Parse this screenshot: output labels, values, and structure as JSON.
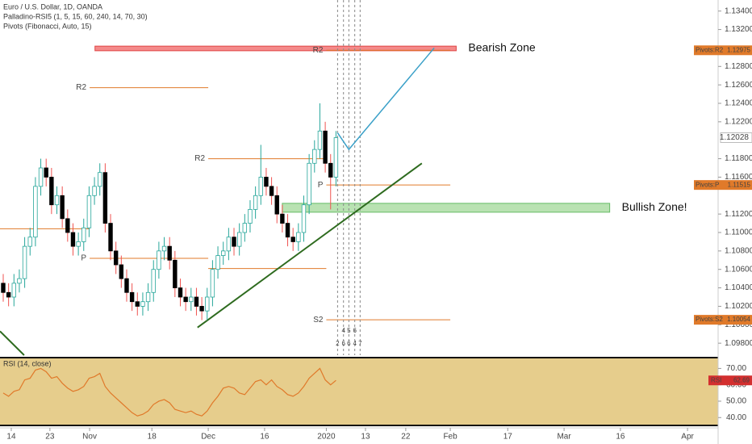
{
  "chart_data": [
    {
      "type": "candlestick",
      "title": "Euro / U.S. Dollar, 1D, OANDA",
      "indicators": [
        "Palladino-RSI5 (1, 5, 15, 60, 240, 14, 70, 30)",
        "Pivots (Fibonacci, Auto, 15)"
      ],
      "x": [
        0,
        1,
        2,
        3,
        4,
        5,
        6,
        7,
        8,
        9,
        10,
        11,
        12,
        13,
        14,
        15,
        16,
        17,
        18,
        19,
        20,
        21,
        22,
        23,
        24,
        25,
        26,
        27,
        28,
        29,
        30,
        31,
        32,
        33,
        34,
        35,
        36,
        37,
        38,
        39,
        40,
        41,
        42,
        43,
        44,
        45,
        46,
        47,
        48,
        49,
        50,
        51,
        52,
        53,
        54,
        55,
        56,
        57,
        58,
        59,
        60,
        61,
        62
      ],
      "open": [
        1.1045,
        1.1035,
        1.103,
        1.1045,
        1.105,
        1.1085,
        1.1095,
        1.115,
        1.117,
        1.116,
        1.113,
        1.114,
        1.1115,
        1.11,
        1.1085,
        1.109,
        1.1105,
        1.114,
        1.115,
        1.1165,
        1.111,
        1.108,
        1.1065,
        1.105,
        1.1035,
        1.1025,
        1.102,
        1.1025,
        1.1035,
        1.106,
        1.108,
        1.1085,
        1.107,
        1.104,
        1.103,
        1.1025,
        1.103,
        1.102,
        1.1015,
        1.103,
        1.106,
        1.1075,
        1.108,
        1.1095,
        1.1085,
        1.11,
        1.111,
        1.1125,
        1.114,
        1.116,
        1.115,
        1.114,
        1.112,
        1.111,
        1.1095,
        1.109,
        1.11,
        1.113,
        1.1175,
        1.119,
        1.121,
        1.1175,
        1.116
      ],
      "high": [
        1.1055,
        1.1045,
        1.1055,
        1.106,
        1.1095,
        1.1105,
        1.116,
        1.118,
        1.118,
        1.117,
        1.115,
        1.115,
        1.1125,
        1.111,
        1.11,
        1.1115,
        1.115,
        1.116,
        1.1175,
        1.1175,
        1.112,
        1.109,
        1.1075,
        1.106,
        1.1045,
        1.1035,
        1.1035,
        1.1045,
        1.107,
        1.109,
        1.1095,
        1.1095,
        1.108,
        1.105,
        1.104,
        1.104,
        1.104,
        1.103,
        1.104,
        1.107,
        1.1085,
        1.109,
        1.1105,
        1.1105,
        1.111,
        1.112,
        1.1135,
        1.115,
        1.1195,
        1.117,
        1.116,
        1.115,
        1.113,
        1.112,
        1.1105,
        1.111,
        1.114,
        1.1185,
        1.12,
        1.124,
        1.122,
        1.1185,
        1.121
      ],
      "low": [
        1.1025,
        1.102,
        1.102,
        1.1035,
        1.104,
        1.1075,
        1.1085,
        1.114,
        1.115,
        1.112,
        1.112,
        1.1105,
        1.109,
        1.1075,
        1.1075,
        1.108,
        1.1095,
        1.113,
        1.114,
        1.11,
        1.107,
        1.1055,
        1.104,
        1.1025,
        1.1015,
        1.101,
        1.101,
        1.1015,
        1.1025,
        1.105,
        1.107,
        1.106,
        1.103,
        1.102,
        1.1015,
        1.1015,
        1.101,
        1.1005,
        1.1005,
        1.102,
        1.105,
        1.1065,
        1.107,
        1.1075,
        1.1075,
        1.109,
        1.11,
        1.1115,
        1.113,
        1.114,
        1.113,
        1.111,
        1.11,
        1.1085,
        1.108,
        1.108,
        1.109,
        1.112,
        1.1165,
        1.118,
        1.1165,
        1.1125,
        1.115
      ],
      "close": [
        1.1035,
        1.103,
        1.1045,
        1.105,
        1.1085,
        1.1095,
        1.115,
        1.117,
        1.116,
        1.113,
        1.114,
        1.1115,
        1.11,
        1.1085,
        1.109,
        1.1105,
        1.114,
        1.115,
        1.1165,
        1.111,
        1.108,
        1.1065,
        1.105,
        1.1035,
        1.1025,
        1.102,
        1.1025,
        1.1035,
        1.106,
        1.108,
        1.1085,
        1.107,
        1.104,
        1.103,
        1.1025,
        1.103,
        1.102,
        1.1015,
        1.103,
        1.106,
        1.1075,
        1.108,
        1.1095,
        1.1085,
        1.11,
        1.111,
        1.1125,
        1.114,
        1.116,
        1.115,
        1.114,
        1.112,
        1.111,
        1.1095,
        1.109,
        1.11,
        1.113,
        1.1175,
        1.119,
        1.121,
        1.1175,
        1.116,
        1.12028
      ],
      "up_color": "#26a69a",
      "down_color": "#000000",
      "down_wick_color": "#ef5350",
      "xlim": [
        -0.6,
        133.2
      ],
      "ylim": [
        1.0967,
        1.1352
      ],
      "yticks": [
        {
          "value": 1.134,
          "label": "1.13400"
        },
        {
          "value": 1.132,
          "label": "1.13200"
        },
        {
          "value": 1.128,
          "label": "1.12800"
        },
        {
          "value": 1.126,
          "label": "1.12600"
        },
        {
          "value": 1.124,
          "label": "1.12400"
        },
        {
          "value": 1.122,
          "label": "1.12200"
        },
        {
          "value": 1.118,
          "label": "1.11800"
        },
        {
          "value": 1.116,
          "label": "1.11600"
        },
        {
          "value": 1.112,
          "label": "1.11200"
        },
        {
          "value": 1.11,
          "label": "1.11000"
        },
        {
          "value": 1.108,
          "label": "1.10800"
        },
        {
          "value": 1.106,
          "label": "1.10600"
        },
        {
          "value": 1.104,
          "label": "1.10400"
        },
        {
          "value": 1.102,
          "label": "1.10200"
        },
        {
          "value": 1.1,
          "label": "1.10000"
        },
        {
          "value": 1.098,
          "label": "1.09800"
        }
      ],
      "xticks": [
        {
          "value": 1.5,
          "label": "14"
        },
        {
          "value": 8.7,
          "label": "23"
        },
        {
          "value": 16.1,
          "label": "Nov"
        },
        {
          "value": 27.7,
          "label": "18"
        },
        {
          "value": 38.2,
          "label": "Dec"
        },
        {
          "value": 48.7,
          "label": "16"
        },
        {
          "value": 60.2,
          "label": "2020"
        },
        {
          "value": 67.5,
          "label": "13"
        },
        {
          "value": 75.0,
          "label": "22"
        },
        {
          "value": 83.3,
          "label": "Feb"
        },
        {
          "value": 94.0,
          "label": "17"
        },
        {
          "value": 104.5,
          "label": "Mar"
        },
        {
          "value": 115.0,
          "label": "16"
        },
        {
          "value": 127.5,
          "label": "Apr"
        }
      ],
      "pivot_color": "#e07a2a",
      "pivots": [
        {
          "value": 1.1104,
          "start": -0.6,
          "end": 16.1
        },
        {
          "label": "R2",
          "value": 1.1257,
          "start": 16.1,
          "end": 38.2
        },
        {
          "label": "P",
          "value": 1.1072,
          "start": 16.1,
          "end": 38.2
        },
        {
          "label": "R2",
          "value": 1.118,
          "start": 38.2,
          "end": 60.2
        },
        {
          "value": 1.1061,
          "start": 38.2,
          "end": 60.2
        },
        {
          "label": "R2",
          "value": 1.12975,
          "start": 60.2,
          "end": 83.3,
          "axis_label": "Pivots:R2"
        },
        {
          "label": "P",
          "value": 1.11515,
          "start": 60.2,
          "end": 83.3,
          "axis_label": "Pivots:P"
        },
        {
          "label": "S2",
          "value": 1.10054,
          "start": 60.2,
          "end": 83.3,
          "axis_label": "Pivots:S2"
        }
      ],
      "zones": [
        {
          "label": "Bearish Zone",
          "top": 1.1302,
          "bottom": 1.1297,
          "start": 17.1,
          "end": 84.4,
          "color": "#f48a8a",
          "border": "#e04545"
        },
        {
          "label": "Bullish Zone!",
          "top": 1.11316,
          "bottom": 1.1122,
          "start": 52,
          "end": 113,
          "color": "#b9e2b2",
          "border": "#66bb66"
        }
      ],
      "trendlines": [
        {
          "x": [
            36.2,
            78
          ],
          "y": [
            1.0997,
            1.1175
          ],
          "color": "#2e6b1f"
        },
        {
          "x": [
            -0.6,
            3.9
          ],
          "y": [
            1.0993,
            1.0967
          ],
          "color": "#2e6b1f"
        }
      ],
      "projection": {
        "x": [
          62.3,
          64.4,
          80.3
        ],
        "y": [
          1.1208,
          1.119,
          1.13
        ],
        "color": "#3aa0c8"
      },
      "events": {
        "x": [
          62.3,
          63.4,
          64.4,
          65.5,
          66.5
        ],
        "top_labels": [
          null,
          "4",
          "5",
          "6",
          null
        ],
        "bottom_labels": [
          "2",
          "6",
          "6",
          "4",
          "7"
        ]
      }
    },
    {
      "type": "line",
      "title": "RSI (14, close)",
      "badge": "RSI",
      "color": "#e0792a",
      "values": [
        55,
        53,
        56,
        57,
        63,
        64,
        69,
        70,
        68,
        64,
        65,
        61,
        58,
        56,
        57,
        59,
        64,
        65,
        67,
        59,
        55,
        52,
        49,
        46,
        43,
        41,
        42,
        44,
        48,
        50,
        51,
        49,
        45,
        44,
        43,
        44,
        42,
        41,
        44,
        49,
        53,
        58,
        59,
        58,
        55,
        54,
        58,
        62,
        63,
        60,
        63,
        59,
        57,
        54,
        53,
        55,
        59,
        64,
        67,
        70,
        63,
        60,
        62.69
      ],
      "ylim": [
        35.2,
        76.6
      ],
      "yticks": [
        {
          "value": 70,
          "label": "70.00"
        },
        {
          "value": 60,
          "label": "60.00"
        },
        {
          "value": 50,
          "label": "50.00"
        },
        {
          "value": 40,
          "label": "40.00"
        }
      ]
    }
  ]
}
